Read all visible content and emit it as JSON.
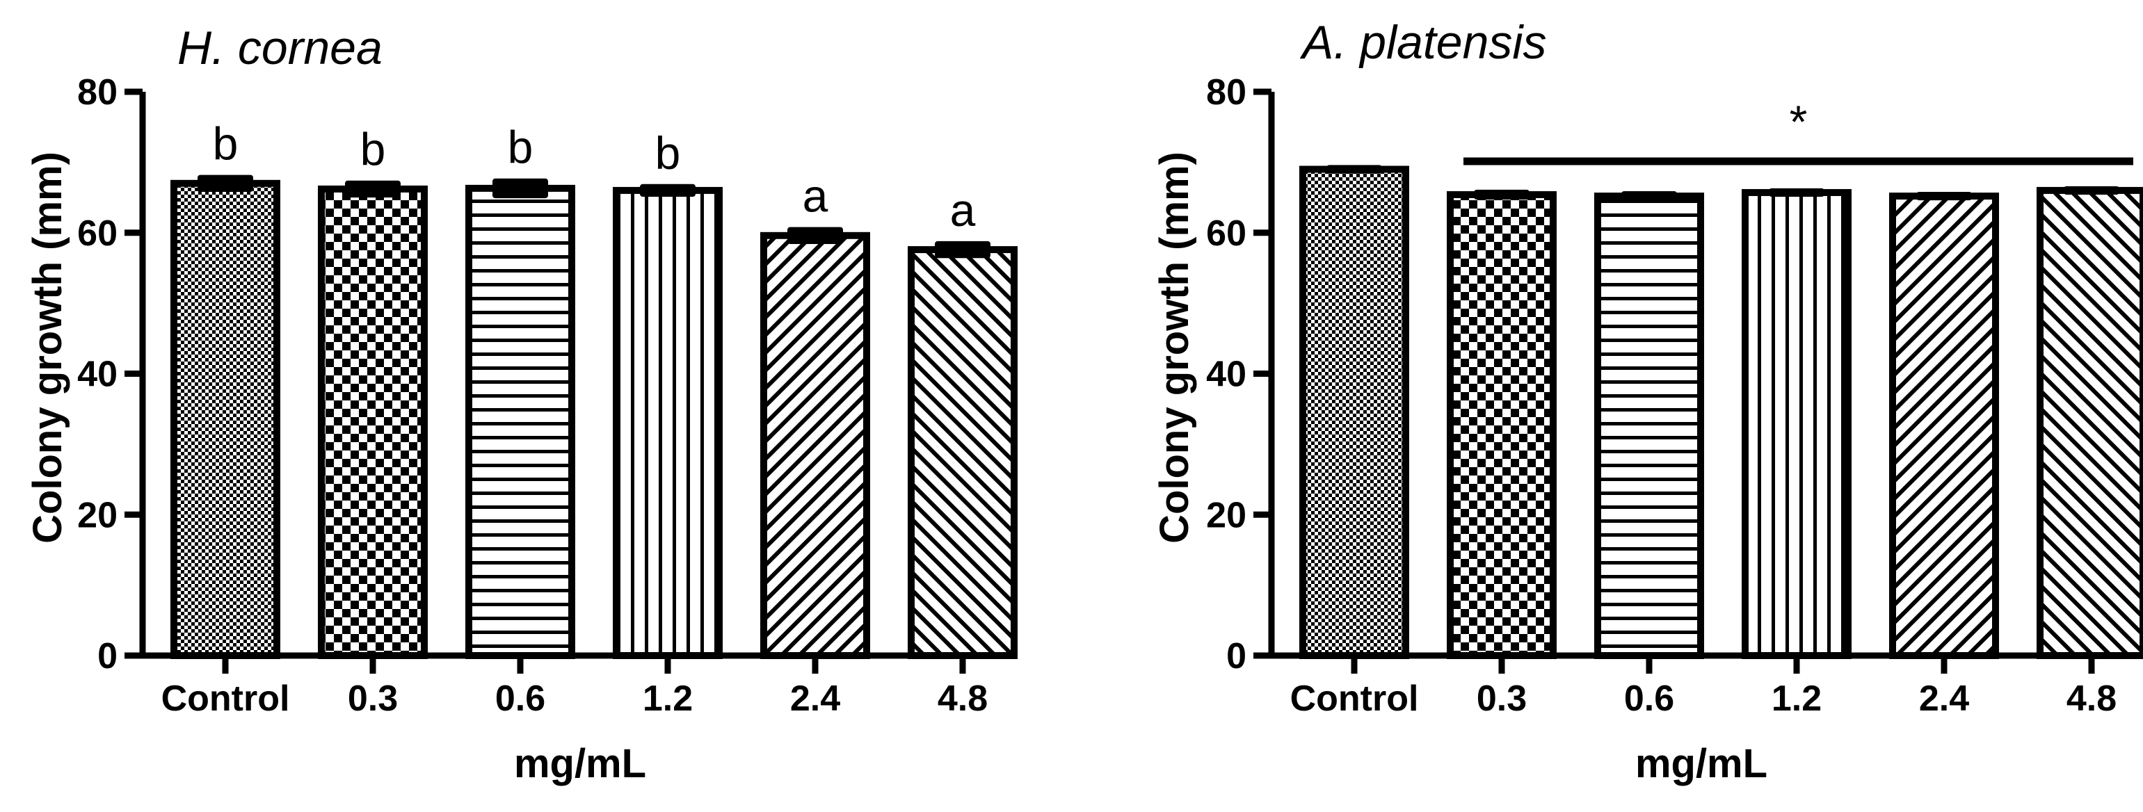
{
  "chart_data": [
    {
      "type": "bar",
      "title": "H. cornea",
      "xlabel": "mg/mL",
      "ylabel": "Colony growth (mm)",
      "ylim": [
        0,
        80
      ],
      "yticks": [
        0,
        20,
        40,
        60,
        80
      ],
      "categories": [
        "Control",
        "0.3",
        "0.6",
        "1.2",
        "2.4",
        "4.8"
      ],
      "values": [
        67,
        66.2,
        66.3,
        66.0,
        59.6,
        57.6
      ],
      "errors": [
        1.2,
        1.2,
        1.4,
        0.9,
        1.2,
        1.2
      ],
      "patterns": [
        "fine-check",
        "check",
        "hlines",
        "vlines",
        "diag-right",
        "diag-left"
      ],
      "letters": [
        "b",
        "b",
        "b",
        "b",
        "a",
        "a"
      ]
    },
    {
      "type": "bar",
      "title": "A. platensis",
      "xlabel": "mg/mL",
      "ylabel": "Colony growth (mm)",
      "ylim": [
        0,
        80
      ],
      "yticks": [
        0,
        20,
        40,
        60,
        80
      ],
      "categories": [
        "Control",
        "0.3",
        "0.6",
        "1.2",
        "2.4",
        "4.8"
      ],
      "values": [
        69.0,
        65.4,
        65.2,
        65.7,
        65.2,
        66.0
      ],
      "errors": [
        0.6,
        0.7,
        0.7,
        0.6,
        0.6,
        0.6
      ],
      "patterns": [
        "fine-check",
        "check",
        "hlines",
        "vlines",
        "diag-right",
        "diag-left"
      ],
      "significance": {
        "symbol": "*",
        "from_category": "0.3",
        "to_category": "4.8"
      }
    }
  ]
}
